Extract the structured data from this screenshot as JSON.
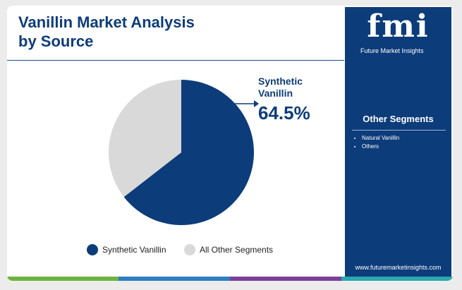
{
  "chart_data": {
    "type": "pie",
    "title": "Vanillin Market Analysis by Source",
    "categories": [
      "Synthetic Vanillin",
      "All Other Segments"
    ],
    "values": [
      64.5,
      35.5
    ],
    "value_labels": [
      "64.5%",
      null
    ],
    "colors": [
      "#0d3c7a",
      "#d9d9d9"
    ],
    "legend": "bottom"
  },
  "sidebar": {
    "logo": "fmi",
    "logo_subtitle": "Future Market Insights",
    "heading": "Other Segments",
    "items": [
      "Natural Vanillin",
      "Others"
    ],
    "website": "www.futuremarketinsights.com"
  }
}
